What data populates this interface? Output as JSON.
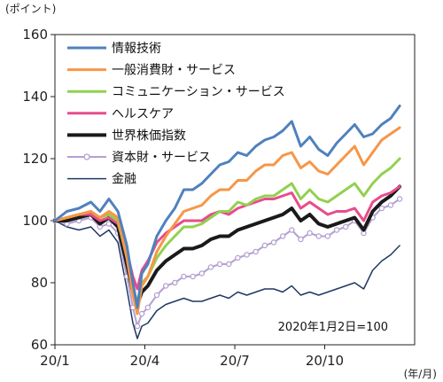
{
  "chart_data": {
    "type": "line",
    "y_unit_label": "(ポイント)",
    "x_unit_label": "(年/月)",
    "note": "2020年1月2日=100",
    "ylim": [
      60,
      160
    ],
    "yticks": [
      60,
      80,
      100,
      120,
      140,
      160
    ],
    "x_ticks": [
      {
        "label": "20/1",
        "x": 0
      },
      {
        "label": "20/4",
        "x": 3
      },
      {
        "label": "20/7",
        "x": 6
      },
      {
        "label": "20/10",
        "x": 9
      }
    ],
    "xlim": [
      0,
      12
    ],
    "grid": false,
    "legend_position": "top-left",
    "series": [
      {
        "name": "情報技術",
        "color": "#4f81bd",
        "width": 3,
        "points": [
          [
            0,
            100
          ],
          [
            0.4,
            103
          ],
          [
            0.8,
            104
          ],
          [
            1.2,
            106
          ],
          [
            1.5,
            103
          ],
          [
            1.8,
            107
          ],
          [
            2.1,
            103
          ],
          [
            2.4,
            92
          ],
          [
            2.6,
            80
          ],
          [
            2.75,
            72
          ],
          [
            2.9,
            83
          ],
          [
            3.1,
            86
          ],
          [
            3.4,
            95
          ],
          [
            3.7,
            100
          ],
          [
            4.0,
            104
          ],
          [
            4.3,
            110
          ],
          [
            4.6,
            110
          ],
          [
            4.9,
            112
          ],
          [
            5.2,
            115
          ],
          [
            5.5,
            118
          ],
          [
            5.8,
            119
          ],
          [
            6.1,
            122
          ],
          [
            6.4,
            121
          ],
          [
            6.7,
            124
          ],
          [
            7.0,
            126
          ],
          [
            7.3,
            127
          ],
          [
            7.6,
            129
          ],
          [
            7.9,
            132
          ],
          [
            8.2,
            124
          ],
          [
            8.5,
            127
          ],
          [
            8.8,
            123
          ],
          [
            9.1,
            121
          ],
          [
            9.4,
            125
          ],
          [
            9.7,
            128
          ],
          [
            10.0,
            131
          ],
          [
            10.3,
            127
          ],
          [
            10.6,
            128
          ],
          [
            10.9,
            131
          ],
          [
            11.2,
            133
          ],
          [
            11.5,
            137
          ]
        ]
      },
      {
        "name": "一般消費財・サービス",
        "color": "#f79646",
        "width": 3,
        "points": [
          [
            0,
            100
          ],
          [
            0.4,
            101
          ],
          [
            0.8,
            102
          ],
          [
            1.2,
            103
          ],
          [
            1.5,
            101
          ],
          [
            1.8,
            103
          ],
          [
            2.1,
            101
          ],
          [
            2.4,
            88
          ],
          [
            2.6,
            76
          ],
          [
            2.75,
            70
          ],
          [
            2.9,
            79
          ],
          [
            3.1,
            82
          ],
          [
            3.4,
            90
          ],
          [
            3.7,
            95
          ],
          [
            4.0,
            99
          ],
          [
            4.3,
            103
          ],
          [
            4.6,
            104
          ],
          [
            4.9,
            105
          ],
          [
            5.2,
            108
          ],
          [
            5.5,
            110
          ],
          [
            5.8,
            110
          ],
          [
            6.1,
            113
          ],
          [
            6.4,
            113
          ],
          [
            6.7,
            116
          ],
          [
            7.0,
            118
          ],
          [
            7.3,
            118
          ],
          [
            7.6,
            121
          ],
          [
            7.9,
            122
          ],
          [
            8.2,
            117
          ],
          [
            8.5,
            119
          ],
          [
            8.8,
            116
          ],
          [
            9.1,
            115
          ],
          [
            9.4,
            118
          ],
          [
            9.7,
            121
          ],
          [
            10.0,
            124
          ],
          [
            10.3,
            118
          ],
          [
            10.6,
            122
          ],
          [
            10.9,
            126
          ],
          [
            11.2,
            128
          ],
          [
            11.5,
            130
          ]
        ]
      },
      {
        "name": "コミュニケーション・サービス",
        "color": "#92d050",
        "width": 3,
        "points": [
          [
            0,
            100
          ],
          [
            0.4,
            101
          ],
          [
            0.8,
            102
          ],
          [
            1.2,
            103
          ],
          [
            1.5,
            101
          ],
          [
            1.8,
            102
          ],
          [
            2.1,
            100
          ],
          [
            2.4,
            88
          ],
          [
            2.6,
            78
          ],
          [
            2.75,
            74
          ],
          [
            2.9,
            80
          ],
          [
            3.1,
            82
          ],
          [
            3.4,
            88
          ],
          [
            3.7,
            92
          ],
          [
            4.0,
            95
          ],
          [
            4.3,
            98
          ],
          [
            4.6,
            98
          ],
          [
            4.9,
            99
          ],
          [
            5.2,
            101
          ],
          [
            5.5,
            103
          ],
          [
            5.8,
            103
          ],
          [
            6.1,
            106
          ],
          [
            6.4,
            105
          ],
          [
            6.7,
            107
          ],
          [
            7.0,
            108
          ],
          [
            7.3,
            108
          ],
          [
            7.6,
            110
          ],
          [
            7.9,
            112
          ],
          [
            8.2,
            107
          ],
          [
            8.5,
            110
          ],
          [
            8.8,
            107
          ],
          [
            9.1,
            106
          ],
          [
            9.4,
            108
          ],
          [
            9.7,
            110
          ],
          [
            10.0,
            112
          ],
          [
            10.3,
            108
          ],
          [
            10.6,
            112
          ],
          [
            10.9,
            115
          ],
          [
            11.2,
            117
          ],
          [
            11.5,
            120
          ]
        ]
      },
      {
        "name": "ヘルスケア",
        "color": "#e84c8b",
        "width": 3,
        "points": [
          [
            0,
            100
          ],
          [
            0.4,
            101
          ],
          [
            0.8,
            102
          ],
          [
            1.2,
            102
          ],
          [
            1.5,
            100
          ],
          [
            1.8,
            101
          ],
          [
            2.1,
            99
          ],
          [
            2.4,
            90
          ],
          [
            2.6,
            82
          ],
          [
            2.75,
            78
          ],
          [
            2.9,
            84
          ],
          [
            3.1,
            87
          ],
          [
            3.4,
            93
          ],
          [
            3.7,
            96
          ],
          [
            4.0,
            98
          ],
          [
            4.3,
            100
          ],
          [
            4.6,
            100
          ],
          [
            4.9,
            100
          ],
          [
            5.2,
            102
          ],
          [
            5.5,
            103
          ],
          [
            5.8,
            102
          ],
          [
            6.1,
            104
          ],
          [
            6.4,
            105
          ],
          [
            6.7,
            106
          ],
          [
            7.0,
            107
          ],
          [
            7.3,
            107
          ],
          [
            7.6,
            108
          ],
          [
            7.9,
            109
          ],
          [
            8.2,
            104
          ],
          [
            8.5,
            106
          ],
          [
            8.8,
            104
          ],
          [
            9.1,
            102
          ],
          [
            9.4,
            103
          ],
          [
            9.7,
            103
          ],
          [
            10.0,
            104
          ],
          [
            10.3,
            100
          ],
          [
            10.6,
            106
          ],
          [
            10.9,
            108
          ],
          [
            11.2,
            109
          ],
          [
            11.5,
            111
          ]
        ]
      },
      {
        "name": "世界株価指数",
        "color": "#1a1a1a",
        "width": 4,
        "points": [
          [
            0,
            100
          ],
          [
            0.4,
            100
          ],
          [
            0.8,
            101
          ],
          [
            1.2,
            102
          ],
          [
            1.5,
            99
          ],
          [
            1.8,
            101
          ],
          [
            2.1,
            98
          ],
          [
            2.4,
            86
          ],
          [
            2.6,
            77
          ],
          [
            2.75,
            73
          ],
          [
            2.9,
            77
          ],
          [
            3.1,
            79
          ],
          [
            3.4,
            84
          ],
          [
            3.7,
            87
          ],
          [
            4.0,
            89
          ],
          [
            4.3,
            91
          ],
          [
            4.6,
            91
          ],
          [
            4.9,
            92
          ],
          [
            5.2,
            94
          ],
          [
            5.5,
            95
          ],
          [
            5.8,
            95
          ],
          [
            6.1,
            97
          ],
          [
            6.4,
            98
          ],
          [
            6.7,
            99
          ],
          [
            7.0,
            100
          ],
          [
            7.3,
            101
          ],
          [
            7.6,
            102
          ],
          [
            7.9,
            104
          ],
          [
            8.2,
            100
          ],
          [
            8.5,
            102
          ],
          [
            8.8,
            99
          ],
          [
            9.1,
            98
          ],
          [
            9.4,
            99
          ],
          [
            9.7,
            100
          ],
          [
            10.0,
            101
          ],
          [
            10.3,
            97
          ],
          [
            10.6,
            103
          ],
          [
            10.9,
            106
          ],
          [
            11.2,
            108
          ],
          [
            11.5,
            111
          ]
        ]
      },
      {
        "name": "資本財・サービス",
        "color": "#b4a0d2",
        "width": 2,
        "marker": "circle",
        "points": [
          [
            0,
            100
          ],
          [
            0.4,
            99
          ],
          [
            0.8,
            100
          ],
          [
            1.2,
            101
          ],
          [
            1.5,
            98
          ],
          [
            1.8,
            99
          ],
          [
            2.1,
            96
          ],
          [
            2.4,
            82
          ],
          [
            2.6,
            72
          ],
          [
            2.75,
            66
          ],
          [
            2.9,
            70
          ],
          [
            3.1,
            72
          ],
          [
            3.4,
            76
          ],
          [
            3.7,
            79
          ],
          [
            4.0,
            80
          ],
          [
            4.3,
            82
          ],
          [
            4.6,
            82
          ],
          [
            4.9,
            83
          ],
          [
            5.2,
            85
          ],
          [
            5.5,
            86
          ],
          [
            5.8,
            86
          ],
          [
            6.1,
            88
          ],
          [
            6.4,
            89
          ],
          [
            6.7,
            90
          ],
          [
            7.0,
            92
          ],
          [
            7.3,
            93
          ],
          [
            7.6,
            95
          ],
          [
            7.9,
            97
          ],
          [
            8.2,
            94
          ],
          [
            8.5,
            96
          ],
          [
            8.8,
            95
          ],
          [
            9.1,
            95
          ],
          [
            9.4,
            97
          ],
          [
            9.7,
            98
          ],
          [
            10.0,
            100
          ],
          [
            10.3,
            96
          ],
          [
            10.6,
            101
          ],
          [
            10.9,
            104
          ],
          [
            11.2,
            105
          ],
          [
            11.5,
            107
          ]
        ]
      },
      {
        "name": "金融",
        "color": "#1f3864",
        "width": 1.5,
        "points": [
          [
            0,
            100
          ],
          [
            0.4,
            98
          ],
          [
            0.8,
            97
          ],
          [
            1.2,
            98
          ],
          [
            1.5,
            95
          ],
          [
            1.8,
            97
          ],
          [
            2.1,
            93
          ],
          [
            2.4,
            78
          ],
          [
            2.6,
            67
          ],
          [
            2.75,
            62
          ],
          [
            2.9,
            66
          ],
          [
            3.1,
            67
          ],
          [
            3.4,
            71
          ],
          [
            3.7,
            73
          ],
          [
            4.0,
            74
          ],
          [
            4.3,
            75
          ],
          [
            4.6,
            74
          ],
          [
            4.9,
            74
          ],
          [
            5.2,
            75
          ],
          [
            5.5,
            76
          ],
          [
            5.8,
            75
          ],
          [
            6.1,
            77
          ],
          [
            6.4,
            76
          ],
          [
            6.7,
            77
          ],
          [
            7.0,
            78
          ],
          [
            7.3,
            78
          ],
          [
            7.6,
            77
          ],
          [
            7.9,
            79
          ],
          [
            8.2,
            76
          ],
          [
            8.5,
            77
          ],
          [
            8.8,
            76
          ],
          [
            9.1,
            77
          ],
          [
            9.4,
            78
          ],
          [
            9.7,
            79
          ],
          [
            10.0,
            80
          ],
          [
            10.3,
            78
          ],
          [
            10.6,
            84
          ],
          [
            10.9,
            87
          ],
          [
            11.2,
            89
          ],
          [
            11.5,
            92
          ]
        ]
      }
    ]
  }
}
